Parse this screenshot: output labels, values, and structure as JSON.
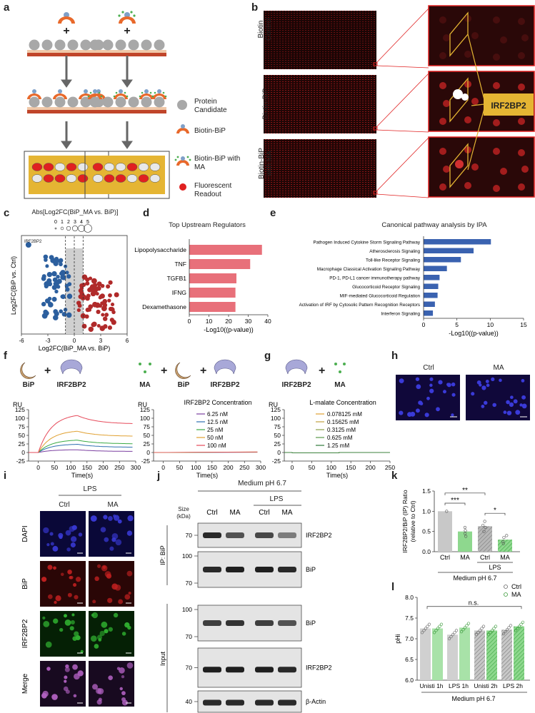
{
  "letters": {
    "a": "a",
    "b": "b",
    "c": "c",
    "d": "d",
    "e": "e",
    "f": "f",
    "g": "g",
    "h": "h",
    "i": "i",
    "j": "j",
    "k": "k",
    "l": "l"
  },
  "panel_a": {
    "legend": [
      "Protein Candidate",
      "Biotin-BiP",
      "Biotin-BiP with MA",
      "Fluorescent Readout"
    ],
    "colors": {
      "protein": "#a8a8a8",
      "bip": "#e8692b",
      "ma": "#4caf50",
      "readout": "#e02020",
      "slide": "#e5b533",
      "base": "#c0452a"
    }
  },
  "panel_b": {
    "rows": [
      "Biotin Control",
      "Biotin-BiP",
      "Biotin-BiP with MA"
    ],
    "hit_label": "IRF2BP2"
  },
  "panel_c": {
    "size_title": "Abs[Log2FC(BiP_MA vs. BiP)]",
    "size_ticks": [
      "0",
      "1",
      "2",
      "3",
      "4",
      "5"
    ],
    "point_label": "IRF2BP2",
    "chart_data": {
      "type": "scatter",
      "xlabel": "Log2FC(BiP_MA vs. BiP)",
      "ylabel": "Log2FC(BiP vs. Ctrl)",
      "xticks": [
        "-6",
        "-3",
        "0",
        "3",
        "6"
      ],
      "xlim": [
        -6,
        6
      ]
    }
  },
  "panel_d": {
    "title": "Top Upstream Regulators",
    "chart_data": {
      "type": "bar",
      "categories": [
        "Lipopolysaccharide",
        "TNF",
        "TGFB1",
        "IFNG",
        "Dexamethasone"
      ],
      "values": [
        37,
        31,
        24,
        23.5,
        23.5
      ],
      "xlabel": "-Log10((p-value))",
      "xticks": [
        "0",
        "10",
        "20",
        "30",
        "40"
      ],
      "xlim": [
        0,
        40
      ],
      "color": "#e8707a"
    }
  },
  "panel_e": {
    "title": "Canonical pathway analysis by IPA",
    "chart_data": {
      "type": "bar",
      "categories": [
        "Pathogen Induced Cytokine Storm Signaling Pathway",
        "Atherosclerosis Signaling",
        "Toll-like Receptor Signaling",
        "Macrophage Classical Activation Signaling Pathway",
        "PD-1, PD-L1 cancer immunotherapy pathway",
        "Glucocorticoid Receptor Signaling",
        "MIF-mediated Glucocorticoid Regulation",
        "Activation of IRF by Cytosolic Pattern Recognition Receptors",
        "Interferon Signaling"
      ],
      "values": [
        10.1,
        7.5,
        5.6,
        3.5,
        2.4,
        2.2,
        2.1,
        1.7,
        1.4
      ],
      "xlabel": "-Log10((p-value))",
      "xticks": [
        "0",
        "5",
        "10",
        "15"
      ],
      "xlim": [
        0,
        15
      ],
      "color": "#3a62b0"
    }
  },
  "panel_f": {
    "icons": {
      "bip": "BiP",
      "irf": "IRF2BP2",
      "ma": "MA"
    },
    "legend_title": "IRF2BP2 Concentration",
    "ylabel": "RU",
    "xlabel": "Time(s)",
    "yticks": [
      "-25",
      "0",
      "25",
      "50",
      "75",
      "100",
      "125"
    ],
    "xticks": [
      "0",
      "50",
      "100",
      "150",
      "200",
      "250",
      "300"
    ],
    "chart_data": {
      "type": "line",
      "xlim": [
        -30,
        300
      ],
      "ylim": [
        -25,
        125
      ],
      "series": [
        {
          "name": "6.25 nM",
          "color": "#7b3fa0",
          "peak": 8,
          "end": 3
        },
        {
          "name": "12.5 nM",
          "color": "#2f6fb0",
          "peak": 24,
          "end": 15
        },
        {
          "name": "25 nM",
          "color": "#3aaa44",
          "peak": 36,
          "end": 25
        },
        {
          "name": "50 nM",
          "color": "#e0a030",
          "peak": 62,
          "end": 47
        },
        {
          "name": "100 nM",
          "color": "#e64a5a",
          "peak": 108,
          "end": 83
        }
      ]
    }
  },
  "panel_g": {
    "icons": {
      "irf": "IRF2BP2",
      "ma": "MA"
    },
    "legend_title": "L-malate Concentration",
    "ylabel": "RU",
    "xlabel": "Time(s)",
    "yticks": [
      "-25",
      "0",
      "25",
      "50",
      "75",
      "100",
      "125"
    ],
    "xticks": [
      "0",
      "50",
      "100",
      "150",
      "200",
      "250"
    ],
    "chart_data": {
      "type": "line",
      "xlim": [
        -20,
        250
      ],
      "ylim": [
        -25,
        125
      ],
      "series": [
        {
          "name": "0.078125 mM",
          "color": "#e0a030"
        },
        {
          "name": "0.15625 mM",
          "color": "#c2a040"
        },
        {
          "name": "0.3125 mM",
          "color": "#8aa048"
        },
        {
          "name": "0.625 mM",
          "color": "#5a9a48"
        },
        {
          "name": "1.25 mM",
          "color": "#2f7a3a"
        }
      ]
    }
  },
  "panel_h": {
    "labels": [
      "Ctrl",
      "MA"
    ]
  },
  "panel_i": {
    "top": "LPS",
    "cols": [
      "Ctrl",
      "MA"
    ],
    "rows": [
      "DAPI",
      "BiP",
      "IRF2BP2",
      "Merge"
    ]
  },
  "panel_j": {
    "header": "Medium pH 6.7",
    "lps": "LPS",
    "size_label": "Size\n(kDa)",
    "size_line1": "Size",
    "size_line2": "(kDa)",
    "cols": [
      "Ctrl",
      "MA",
      "Ctrl",
      "MA"
    ],
    "ip_label": "IP: BiP",
    "input_label": "Input",
    "blots": [
      {
        "name": "IRF2BP2",
        "markers": [
          "70"
        ]
      },
      {
        "name": "BiP",
        "markers": [
          "100",
          "70"
        ]
      },
      {
        "name": "BiP",
        "markers": [
          "100",
          "70"
        ]
      },
      {
        "name": "IRF2BP2",
        "markers": [
          "70"
        ]
      },
      {
        "name": "β-Actin",
        "markers": [
          "40"
        ]
      }
    ]
  },
  "panel_k": {
    "ylabel1": "IRF2BP2/BiP (IP) Ratio",
    "ylabel2": "(relative to Ctrl)",
    "lps": "LPS",
    "footer": "Medium pH 6.7",
    "sig": [
      "***",
      "**",
      "*"
    ],
    "chart_data": {
      "type": "bar",
      "categories": [
        "Ctrl",
        "MA",
        "Ctrl",
        "MA"
      ],
      "values": [
        1.0,
        0.5,
        0.63,
        0.3
      ],
      "ylim": [
        0,
        1.5
      ],
      "yticks": [
        "0.0",
        "0.5",
        "1.0",
        "1.5"
      ]
    }
  },
  "panel_l": {
    "ylabel": "pHi",
    "legend": [
      "Ctrl",
      "MA"
    ],
    "ns": "n.s.",
    "footer": "Medium pH 6.7",
    "chart_data": {
      "type": "bar",
      "categories": [
        "Unisti 1h",
        "LPS 1h",
        "Unisti 2h",
        "LPS 2h"
      ],
      "series": [
        {
          "name": "Ctrl",
          "values": [
            7.25,
            7.1,
            7.2,
            7.22
          ]
        },
        {
          "name": "MA",
          "values": [
            7.25,
            7.27,
            7.2,
            7.3
          ]
        }
      ],
      "ylim": [
        6.0,
        8.0
      ],
      "yticks": [
        "6.0",
        "6.5",
        "7.0",
        "7.5",
        "8.0"
      ]
    }
  }
}
